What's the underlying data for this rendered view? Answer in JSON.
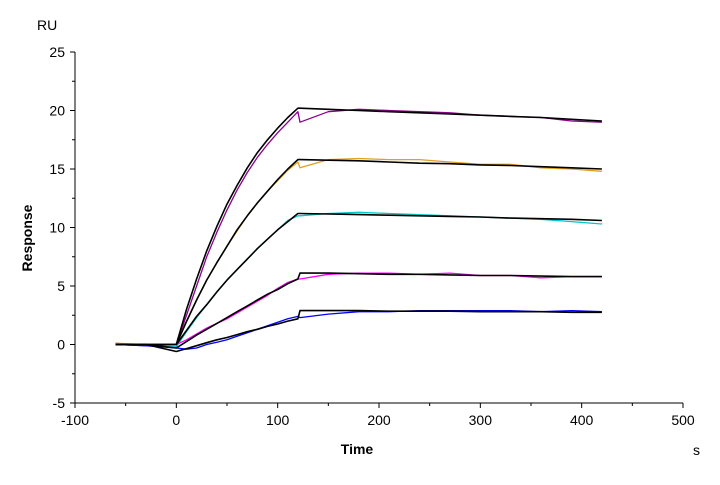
{
  "chart_data": {
    "type": "line",
    "title": "",
    "xlabel": "Time",
    "ylabel": "Response",
    "x_unit": "s",
    "y_unit": "RU",
    "xlim": [
      -100,
      500
    ],
    "ylim": [
      -5,
      25
    ],
    "x_ticks": [
      -100,
      0,
      100,
      200,
      300,
      400,
      500
    ],
    "y_ticks": [
      -5,
      0,
      5,
      10,
      15,
      20,
      25
    ],
    "grid": false,
    "legend": "none",
    "x": [
      -60,
      -30,
      0,
      10,
      20,
      30,
      40,
      50,
      60,
      70,
      80,
      90,
      100,
      110,
      120,
      122,
      150,
      180,
      210,
      240,
      270,
      300,
      330,
      360,
      390,
      420
    ],
    "series": [
      {
        "kind": "observed",
        "color": "#8b008b",
        "values": [
          0.1,
          -0.1,
          0,
          2.5,
          5.0,
          7.5,
          9.6,
          11.5,
          13.2,
          14.7,
          16.0,
          17.1,
          18.1,
          19.0,
          19.9,
          19.0,
          19.9,
          20.1,
          20.0,
          19.9,
          19.8,
          19.6,
          19.5,
          19.4,
          19.1,
          19.0
        ]
      },
      {
        "kind": "observed",
        "color": "#e0a020",
        "values": [
          0.1,
          0,
          0,
          2.0,
          3.8,
          5.5,
          7.0,
          8.4,
          9.7,
          11.0,
          12.1,
          13.1,
          14.0,
          14.9,
          15.6,
          15.1,
          15.8,
          15.9,
          15.8,
          15.8,
          15.6,
          15.4,
          15.4,
          15.1,
          15.0,
          14.8
        ]
      },
      {
        "kind": "observed",
        "color": "#00c8c8",
        "values": [
          0,
          -0.1,
          -0.2,
          1.1,
          2.3,
          3.4,
          4.5,
          5.5,
          6.4,
          7.3,
          8.2,
          9.0,
          9.8,
          10.6,
          11.0,
          11.0,
          11.2,
          11.3,
          11.2,
          11.1,
          11.0,
          10.9,
          10.8,
          10.7,
          10.5,
          10.3
        ]
      },
      {
        "kind": "observed",
        "color": "#ff00ff",
        "values": [
          0,
          -0.1,
          0,
          0.4,
          0.9,
          1.4,
          1.8,
          2.2,
          2.7,
          3.2,
          3.7,
          4.2,
          4.8,
          5.3,
          5.6,
          5.6,
          6.0,
          6.1,
          6.1,
          6.0,
          6.1,
          5.9,
          5.9,
          5.7,
          5.8,
          5.8
        ]
      },
      {
        "kind": "observed",
        "color": "#0000ff",
        "values": [
          0,
          -0.1,
          -0.3,
          -0.4,
          -0.3,
          0.0,
          0.2,
          0.4,
          0.7,
          1.0,
          1.3,
          1.6,
          1.9,
          2.2,
          2.4,
          2.3,
          2.6,
          2.8,
          2.8,
          2.9,
          2.9,
          2.9,
          2.9,
          2.8,
          2.9,
          2.8
        ]
      },
      {
        "kind": "fit",
        "color": "#000000",
        "values": [
          0,
          0,
          0,
          3.0,
          5.6,
          8.0,
          10.1,
          12.0,
          13.6,
          15.1,
          16.4,
          17.5,
          18.5,
          19.4,
          20.2,
          20.2,
          20.1,
          20.0,
          19.9,
          19.8,
          19.7,
          19.6,
          19.5,
          19.4,
          19.25,
          19.1
        ]
      },
      {
        "kind": "fit",
        "color": "#000000",
        "values": [
          0,
          0,
          0,
          1.97,
          3.8,
          5.5,
          7.0,
          8.4,
          9.8,
          11.0,
          12.1,
          13.1,
          14.1,
          15.0,
          15.8,
          15.8,
          15.75,
          15.7,
          15.6,
          15.5,
          15.45,
          15.35,
          15.3,
          15.2,
          15.1,
          15.0
        ]
      },
      {
        "kind": "fit",
        "color": "#000000",
        "values": [
          0,
          0,
          0,
          1.2,
          2.4,
          3.4,
          4.5,
          5.5,
          6.4,
          7.3,
          8.2,
          9.0,
          9.8,
          10.5,
          11.2,
          11.2,
          11.15,
          11.1,
          11.05,
          11.0,
          10.95,
          10.9,
          10.8,
          10.75,
          10.7,
          10.6
        ]
      },
      {
        "kind": "fit",
        "color": "#000000",
        "values": [
          0,
          0,
          -0.3,
          0.25,
          0.8,
          1.3,
          1.8,
          2.3,
          2.8,
          3.3,
          3.8,
          4.3,
          4.7,
          5.2,
          5.6,
          6.1,
          6.1,
          6.05,
          6.0,
          6.0,
          5.95,
          5.9,
          5.9,
          5.85,
          5.8,
          5.8
        ]
      },
      {
        "kind": "fit",
        "color": "#000000",
        "values": [
          0,
          0,
          -0.6,
          -0.35,
          -0.1,
          0.15,
          0.4,
          0.6,
          0.85,
          1.1,
          1.3,
          1.55,
          1.75,
          2.0,
          2.2,
          2.9,
          2.9,
          2.9,
          2.85,
          2.85,
          2.85,
          2.8,
          2.8,
          2.8,
          2.75,
          2.75
        ]
      }
    ]
  }
}
